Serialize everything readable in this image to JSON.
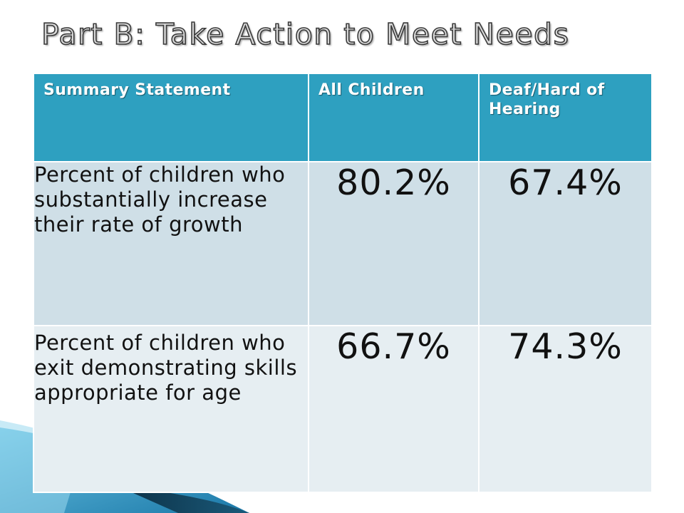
{
  "slide": {
    "title": "Part B: Take Action to Meet Needs"
  },
  "table": {
    "headers": [
      "Summary Statement",
      "All Children",
      "Deaf/Hard of Hearing"
    ],
    "rows": [
      {
        "statement": "Percent of children who substantially increase their rate of growth",
        "all_children": "80.2%",
        "deaf_hard_of_hearing": "67.4%"
      },
      {
        "statement": "Percent of children who exit demonstrating skills appropriate for age",
        "all_children": "66.7%",
        "deaf_hard_of_hearing": "74.3%"
      }
    ]
  },
  "colors": {
    "header_bg": "#2ea0c0",
    "row_1_bg": "#cfdfe7",
    "row_2_bg": "#e6eef2",
    "accent_dark": "#1d3a4a"
  }
}
